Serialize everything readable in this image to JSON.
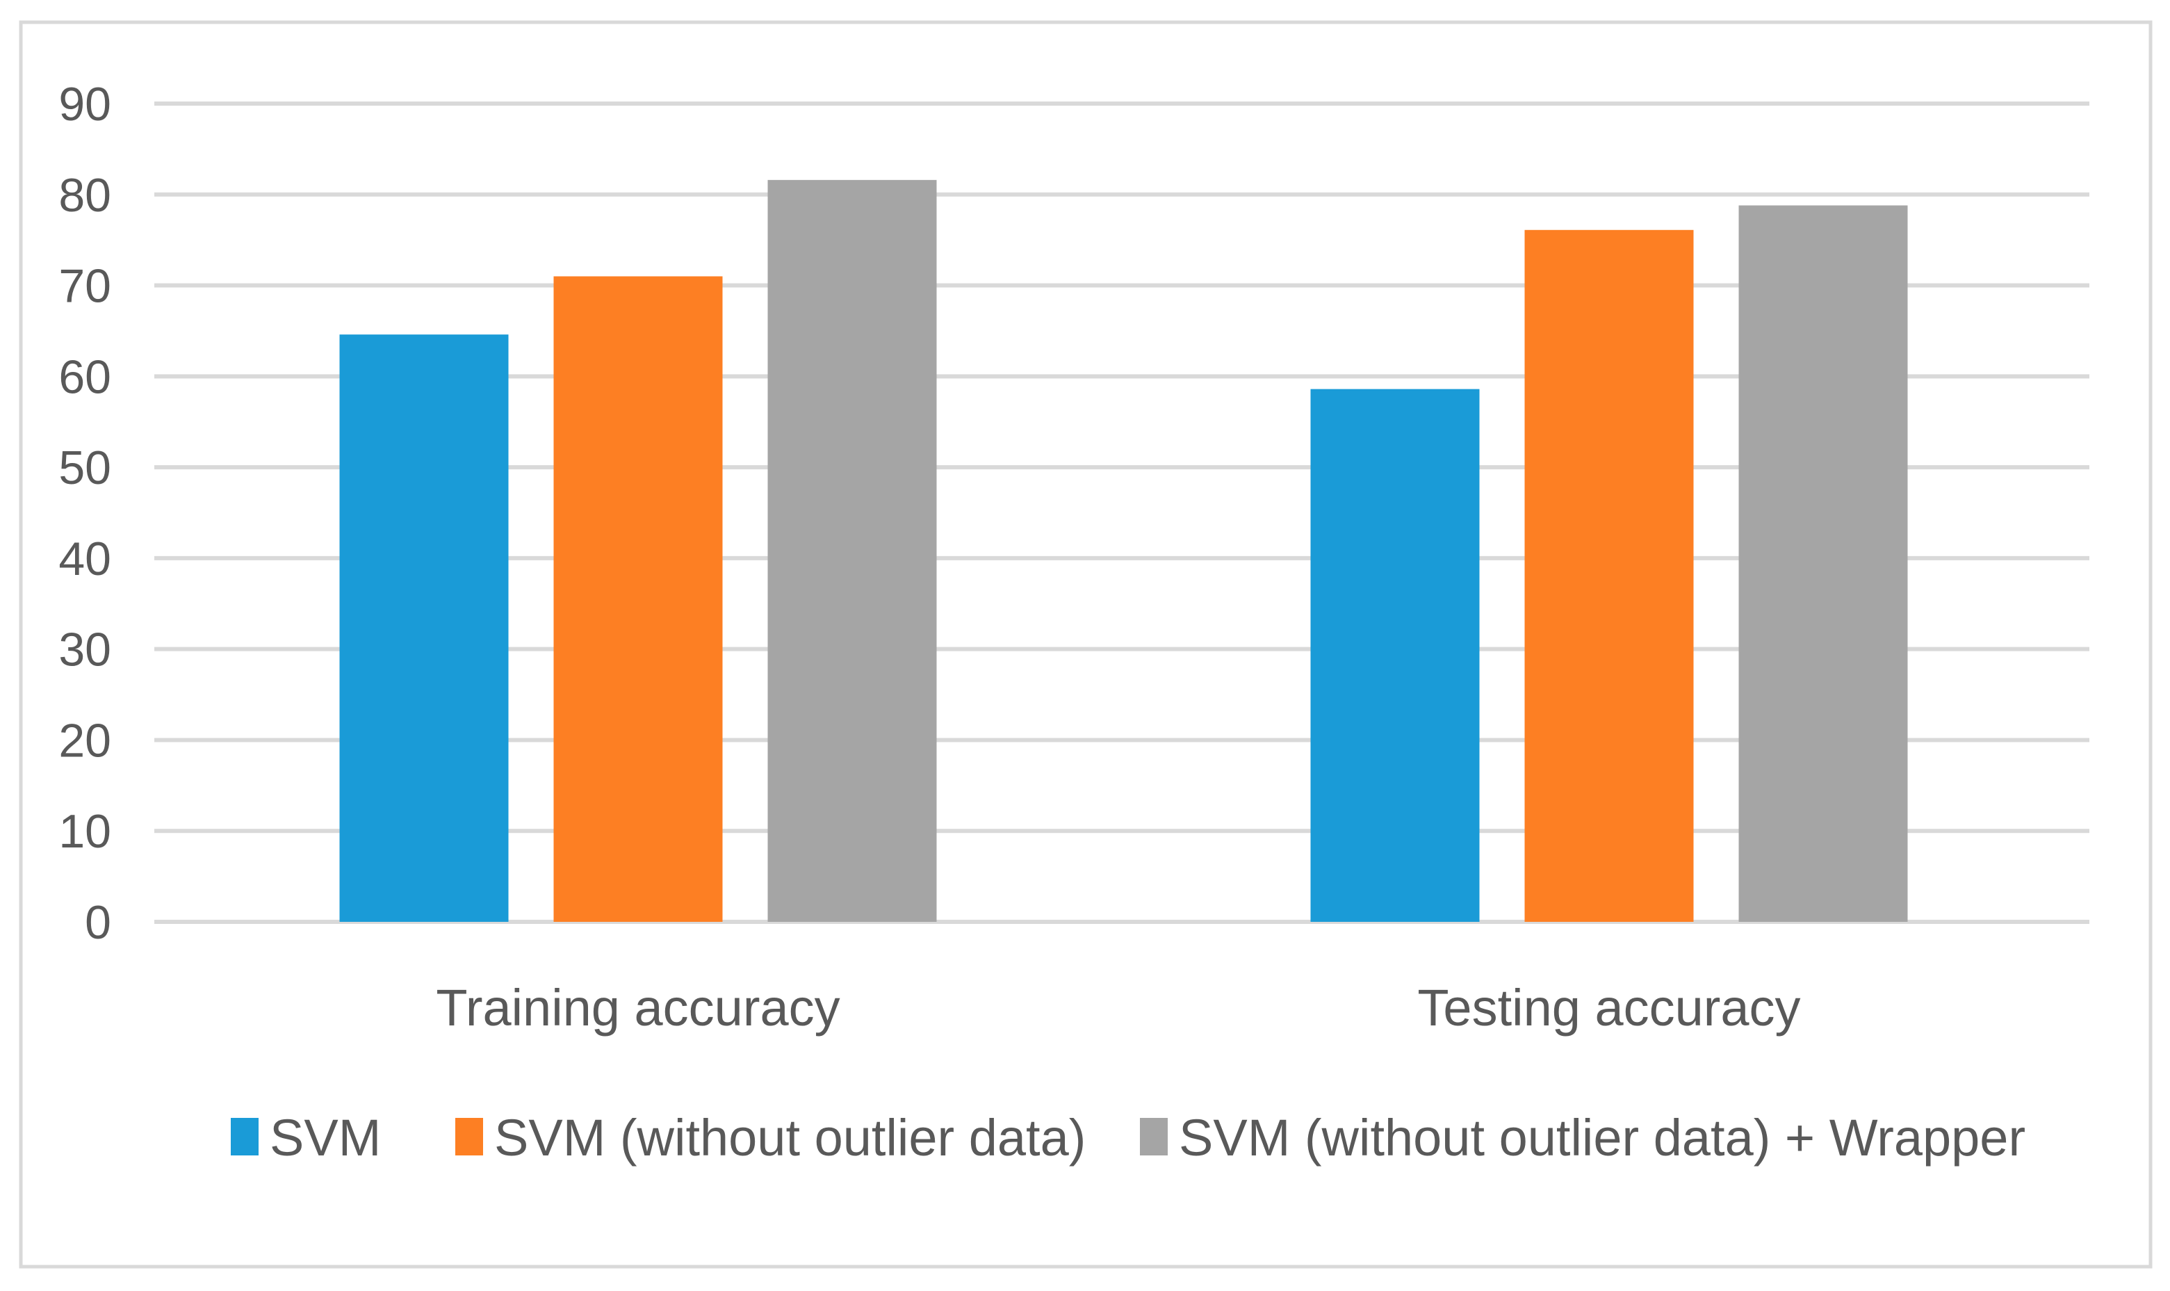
{
  "chart_data": {
    "type": "bar",
    "title": "",
    "xlabel": "",
    "ylabel": "",
    "categories": [
      "Training accuracy",
      "Testing accuracy"
    ],
    "series": [
      {
        "name": "SVM",
        "values": [
          64.6,
          58.6
        ],
        "color": "#1a9bd7"
      },
      {
        "name": "SVM (without outlier data)",
        "values": [
          71.0,
          76.1
        ],
        "color": "#fd7f23"
      },
      {
        "name": "SVM (without outlier data) + Wrapper",
        "values": [
          81.6,
          78.8
        ],
        "color": "#a5a5a5"
      }
    ],
    "ylim": [
      0,
      90
    ],
    "yticks": [
      0,
      10,
      20,
      30,
      40,
      50,
      60,
      70,
      80,
      90
    ],
    "grid": true,
    "legend_position": "bottom",
    "colors": {
      "gridline": "#d9d9d9",
      "text": "#595959",
      "frame": "#d9d9d9"
    }
  }
}
